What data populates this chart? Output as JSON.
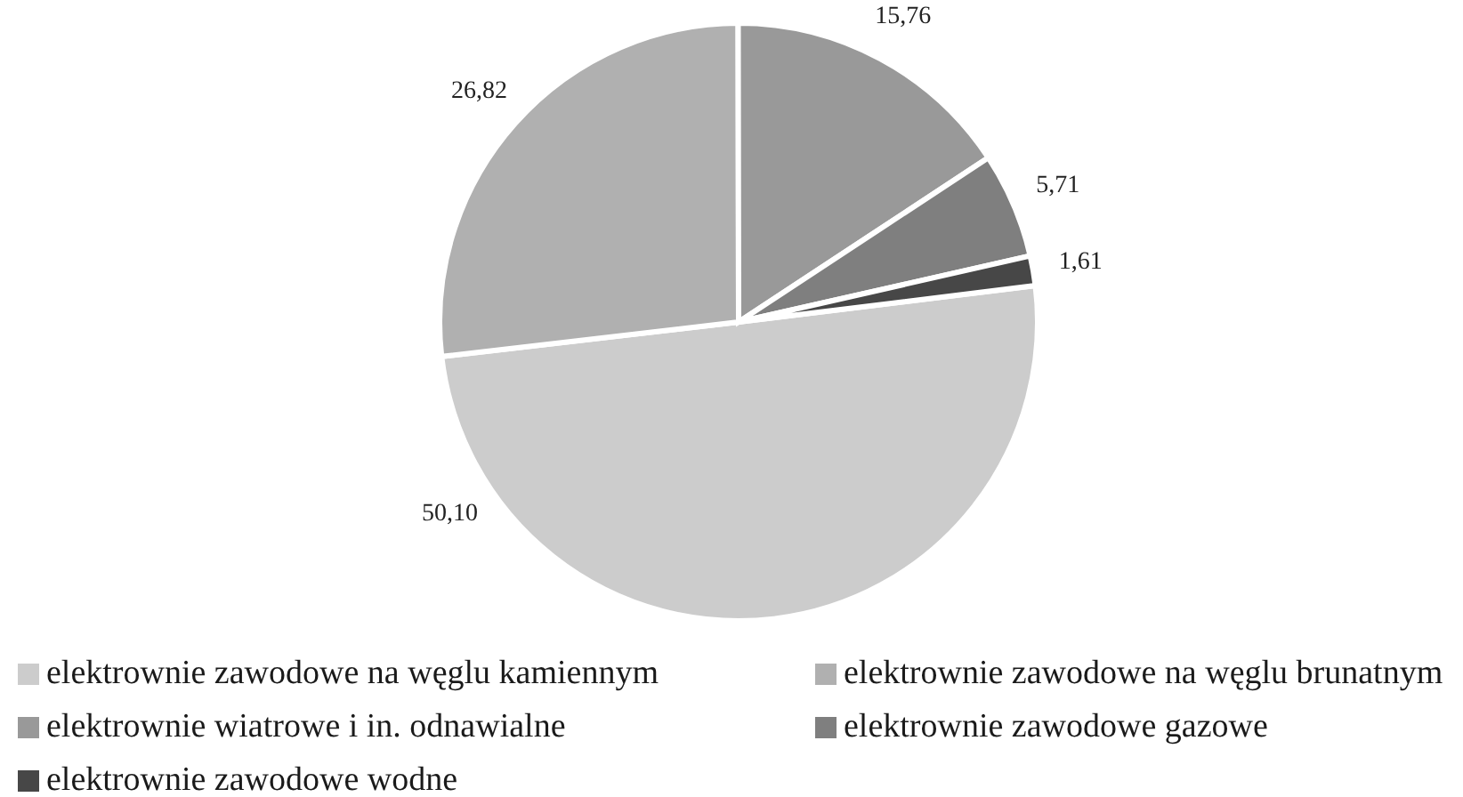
{
  "chart_data": {
    "type": "pie",
    "categories": [
      "elektrownie zawodowe na węglu kamiennym",
      "elektrownie zawodowe na węglu brunatnym",
      "elektrownie wiatrowe i in. odnawialne",
      "elektrownie zawodowe gazowe",
      "elektrownie zawodowe wodne"
    ],
    "values": [
      50.1,
      26.82,
      15.76,
      5.71,
      1.61
    ],
    "colors": [
      "#cccccc",
      "#b0b0b0",
      "#999999",
      "#7f7f7f",
      "#474747"
    ],
    "value_labels": [
      "50,10",
      "26,82",
      "15,76",
      "5,71",
      "1,61"
    ],
    "legend": "bottom"
  }
}
